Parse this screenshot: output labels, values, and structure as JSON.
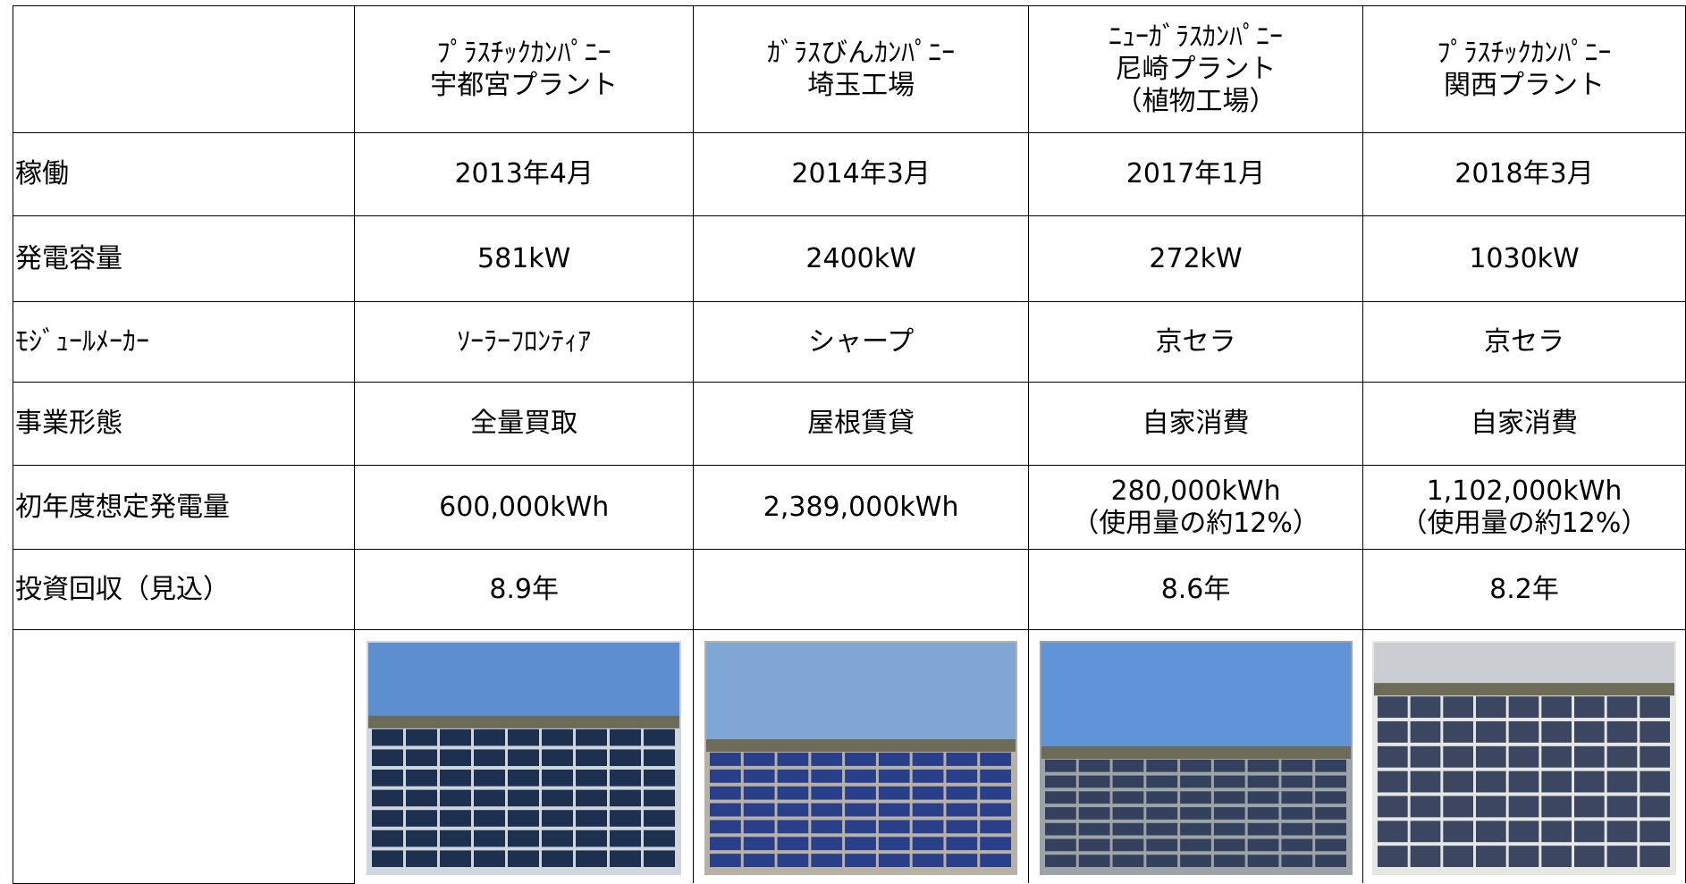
{
  "table": {
    "header": [
      null,
      [
        "ﾌﾟﾗｽﾁｯｸｶﾝﾊﾟﾆｰ",
        "宇都宮プラント"
      ],
      [
        "ｶﾞﾗｽびんｶﾝﾊﾟﾆｰ",
        "埼玉工場"
      ],
      [
        "ﾆｭｰｶﾞﾗｽｶﾝﾊﾟﾆｰ",
        "尼崎プラント",
        "（植物工場）"
      ],
      [
        "ﾌﾟﾗｽﾁｯｸｶﾝﾊﾟﾆｰ",
        "関西プラント"
      ]
    ],
    "rows": [
      [
        "稼働",
        "2013年4月",
        "2014年3月",
        "2017年1月",
        "2018年3月"
      ],
      [
        "発電容量",
        "581kW",
        "2400kW",
        "272kW",
        "1030kW"
      ],
      [
        "ﾓｼﾞｭｰﾙﾒｰｶｰ",
        "ｿｰﾗｰﾌﾛﾝﾃｨｱ",
        "シャープ",
        "京セラ",
        "京セラ"
      ],
      [
        "事業形態",
        "全量買取",
        "屋根賃貸",
        "自家消費",
        "自家消費"
      ],
      [
        "初年度想定発電量",
        "600,000kWh",
        "2,389,000kWh",
        [
          "280,000kWh",
          "（使用量の約12%）"
        ],
        [
          "1,102,000kWh",
          "（使用量の約12%）"
        ]
      ],
      [
        "投資回収（見込）",
        "8.9年",
        null,
        "8.6年",
        "8.2年"
      ]
    ]
  }
}
